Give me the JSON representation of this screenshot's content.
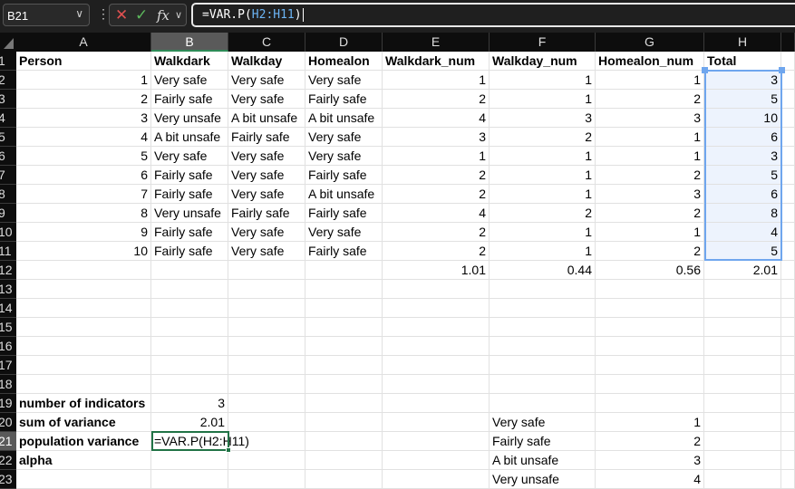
{
  "formula_bar": {
    "name_box": "B21",
    "cancel_icon": "x-icon",
    "enter_icon": "check-icon",
    "fx_label": "fx",
    "formula_prefix": "=VAR.P(",
    "formula_ref": "H2:H11",
    "formula_suffix": ")"
  },
  "colors": {
    "selection_border": "#6fa6ee",
    "active_cell_border": "#217346",
    "ref_color": "#6cb5f5"
  },
  "columns": [
    "A",
    "B",
    "C",
    "D",
    "E",
    "F",
    "G",
    "H"
  ],
  "rows": {
    "1": [
      "Person",
      "Walkdark",
      "Walkday",
      "Homealon",
      "Walkdark_num",
      "Walkday_num",
      "Homealon_num",
      "Total"
    ],
    "2": [
      "1",
      "Very safe",
      "Very safe",
      "Very safe",
      "1",
      "1",
      "1",
      "3"
    ],
    "3": [
      "2",
      "Fairly safe",
      "Very safe",
      "Fairly safe",
      "2",
      "1",
      "2",
      "5"
    ],
    "4": [
      "3",
      "Very unsafe",
      "A bit unsafe",
      "A bit unsafe",
      "4",
      "3",
      "3",
      "10"
    ],
    "5": [
      "4",
      "A bit unsafe",
      "Fairly safe",
      "Very safe",
      "3",
      "2",
      "1",
      "6"
    ],
    "6": [
      "5",
      "Very safe",
      "Very safe",
      "Very safe",
      "1",
      "1",
      "1",
      "3"
    ],
    "7": [
      "6",
      "Fairly safe",
      "Very safe",
      "Fairly safe",
      "2",
      "1",
      "2",
      "5"
    ],
    "8": [
      "7",
      "Fairly safe",
      "Very safe",
      "A bit unsafe",
      "2",
      "1",
      "3",
      "6"
    ],
    "9": [
      "8",
      "Very unsafe",
      "Fairly safe",
      "Fairly safe",
      "4",
      "2",
      "2",
      "8"
    ],
    "10": [
      "9",
      "Fairly safe",
      "Very safe",
      "Very safe",
      "2",
      "1",
      "1",
      "4"
    ],
    "11": [
      "10",
      "Fairly safe",
      "Very safe",
      "Fairly safe",
      "2",
      "1",
      "2",
      "5"
    ],
    "12": [
      "",
      "",
      "",
      "",
      "1.01",
      "0.44",
      "0.56",
      "2.01"
    ],
    "19": [
      "number of indicators",
      "3",
      "",
      "",
      "",
      "",
      "",
      ""
    ],
    "20": [
      "sum of variance",
      "2.01",
      "",
      "",
      "",
      "Very safe",
      "1",
      ""
    ],
    "21": [
      "population variance",
      "=VAR.P(H2:H11)",
      "",
      "",
      "",
      "Fairly safe",
      "2",
      ""
    ],
    "22": [
      "alpha",
      "",
      "",
      "",
      "",
      "A bit unsafe",
      "3",
      ""
    ],
    "23": [
      "",
      "",
      "",
      "",
      "",
      "Very unsafe",
      "4",
      ""
    ]
  }
}
